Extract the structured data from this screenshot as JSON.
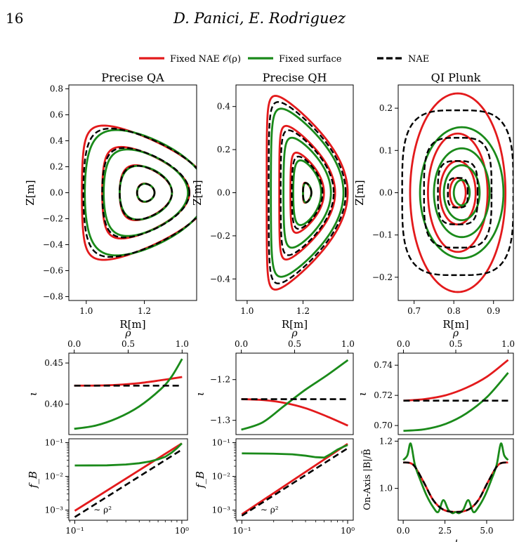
{
  "header": {
    "page_number": "16",
    "running_head": "D. Panici, E. Rodriguez"
  },
  "legend": {
    "items": [
      {
        "label": "Fixed NAE 𝒪(ρ)",
        "color": "#e31a1c",
        "dash": false
      },
      {
        "label": "Fixed surface",
        "color": "#1a8a1a",
        "dash": false
      },
      {
        "label": "NAE",
        "color": "#000000",
        "dash": true
      }
    ]
  },
  "colors": {
    "red": "#e31a1c",
    "green": "#1a8a1a",
    "black": "#000000"
  },
  "chart_data": [
    {
      "id": "qa-cross-section",
      "type": "line",
      "title": "Precise QA",
      "xlabel": "R[m]",
      "ylabel": "Z[m]",
      "xlim": [
        0.94,
        1.38
      ],
      "ylim": [
        -0.83,
        0.83
      ],
      "xticks": [
        1.0,
        1.2
      ],
      "xtick_labels": [
        "1.0",
        "1.2"
      ],
      "yticks": [
        -0.8,
        -0.6,
        -0.4,
        -0.2,
        0.0,
        0.2,
        0.4,
        0.6,
        0.8
      ],
      "ytick_labels": [
        "−0.8",
        "−0.6",
        "−0.4",
        "−0.2",
        "0.0",
        "0.2",
        "0.4",
        "0.6",
        "0.8"
      ],
      "surfaces": [
        {
          "series": "Fixed NAE 𝒪(ρ)",
          "r0": 1.205,
          "a": [
            0.03,
            0.09,
            0.15,
            0.22
          ],
          "k": 2.35,
          "d": [
            0.15,
            0.4,
            0.6,
            0.72
          ]
        },
        {
          "series": "Fixed surface",
          "r0": 1.205,
          "a": [
            0.03,
            0.09,
            0.145,
            0.21
          ],
          "k": 2.3,
          "d": [
            0.1,
            0.3,
            0.45,
            0.5
          ]
        },
        {
          "series": "NAE",
          "r0": 1.205,
          "a": [
            0.03,
            0.09,
            0.15,
            0.215
          ],
          "k": 2.3,
          "d": [
            0.12,
            0.35,
            0.52,
            0.6
          ]
        }
      ]
    },
    {
      "id": "qh-cross-section",
      "type": "line",
      "title": "Precise QH",
      "xlabel": "R[m]",
      "ylabel": "Z[m]",
      "xlim": [
        0.96,
        1.38
      ],
      "ylim": [
        -0.5,
        0.5
      ],
      "xticks": [
        1.0,
        1.2
      ],
      "xtick_labels": [
        "1.0",
        "1.2"
      ],
      "yticks": [
        -0.4,
        -0.2,
        0.0,
        0.2,
        0.4
      ],
      "ytick_labels": [
        "−0.4",
        "−0.2",
        "0.0",
        "0.2",
        "0.4"
      ],
      "surfaces": [
        {
          "series": "Fixed NAE 𝒪(ρ)",
          "r0": 1.215,
          "a": [
            0.015,
            0.06,
            0.1,
            0.145
          ],
          "k": 3.1,
          "d": [
            0.5,
            0.7,
            0.85,
            0.9
          ]
        },
        {
          "series": "Fixed surface",
          "r0": 1.215,
          "a": [
            0.015,
            0.05,
            0.085,
            0.13
          ],
          "k": 3.0,
          "d": [
            0.3,
            0.5,
            0.7,
            0.8
          ]
        },
        {
          "series": "NAE",
          "r0": 1.215,
          "a": [
            0.015,
            0.055,
            0.095,
            0.138
          ],
          "k": 3.05,
          "d": [
            0.4,
            0.6,
            0.78,
            0.85
          ]
        }
      ]
    },
    {
      "id": "qi-cross-section",
      "type": "line",
      "title": "QI Plunk",
      "xlabel": "R[m]",
      "ylabel": "Z[m]",
      "xlim": [
        0.66,
        0.95
      ],
      "ylim": [
        -0.255,
        0.255
      ],
      "xticks": [
        0.7,
        0.8,
        0.9
      ],
      "xtick_labels": [
        "0.7",
        "0.8",
        "0.9"
      ],
      "yticks": [
        -0.2,
        -0.1,
        0.0,
        0.1,
        0.2
      ],
      "ytick_labels": [
        "−0.2",
        "−0.1",
        "0.0",
        "0.1",
        "0.2"
      ],
      "surfaces": [
        {
          "series": "Fixed NAE 𝒪(ρ)",
          "shape": "ellipse",
          "r0": 0.81,
          "a": [
            0.02,
            0.045,
            0.075,
            0.12
          ],
          "b": [
            0.035,
            0.075,
            0.14,
            0.235
          ]
        },
        {
          "series": "Fixed surface",
          "shape": "ellipse",
          "r0": 0.82,
          "a": [
            0.02,
            0.045,
            0.07,
            0.105
          ],
          "b": [
            0.03,
            0.065,
            0.105,
            0.155
          ]
        },
        {
          "series": "NAE",
          "shape": "rounded-square",
          "r0": 0.81,
          "a": [
            0.025,
            0.05,
            0.085,
            0.14
          ],
          "b": [
            0.035,
            0.075,
            0.13,
            0.195
          ]
        }
      ]
    },
    {
      "id": "qa-iota",
      "type": "line",
      "xlabel": "ρ",
      "ylabel": "ι",
      "xlim": [
        -0.05,
        1.05
      ],
      "ylim": [
        0.363,
        0.462
      ],
      "xticks": [
        0.0,
        0.5,
        1.0
      ],
      "xtick_labels": [
        "0.0",
        "0.5",
        "1.0"
      ],
      "yticks": [
        0.4,
        0.45
      ],
      "ytick_labels": [
        "0.40",
        "0.45"
      ],
      "series": [
        {
          "name": "Fixed NAE 𝒪(ρ)",
          "x": [
            0,
            0.2,
            0.4,
            0.6,
            0.8,
            1.0
          ],
          "y": [
            0.4225,
            0.4226,
            0.4235,
            0.4255,
            0.429,
            0.433
          ]
        },
        {
          "name": "Fixed surface",
          "x": [
            0,
            0.2,
            0.4,
            0.6,
            0.8,
            0.9,
            1.0
          ],
          "y": [
            0.37,
            0.374,
            0.383,
            0.397,
            0.418,
            0.433,
            0.455
          ]
        },
        {
          "name": "NAE",
          "x": [
            0,
            1.0
          ],
          "y": [
            0.4225,
            0.4225
          ]
        }
      ]
    },
    {
      "id": "qh-iota",
      "type": "line",
      "xlabel": "ρ",
      "ylabel": "ι",
      "xlim": [
        -0.05,
        1.05
      ],
      "ylim": [
        -1.335,
        -1.135
      ],
      "xticks": [
        0.0,
        0.5,
        1.0
      ],
      "xtick_labels": [
        "0.0",
        "0.5",
        "1.0"
      ],
      "yticks": [
        -1.3,
        -1.2
      ],
      "ytick_labels": [
        "−1.3",
        "−1.2"
      ],
      "series": [
        {
          "name": "Fixed NAE 𝒪(ρ)",
          "x": [
            0,
            0.2,
            0.4,
            0.6,
            0.8,
            1.0
          ],
          "y": [
            -1.248,
            -1.25,
            -1.257,
            -1.27,
            -1.29,
            -1.313
          ]
        },
        {
          "name": "Fixed surface",
          "x": [
            0,
            0.2,
            0.4,
            0.6,
            0.8,
            1.0
          ],
          "y": [
            -1.323,
            -1.305,
            -1.265,
            -1.225,
            -1.19,
            -1.152
          ]
        },
        {
          "name": "NAE",
          "x": [
            0,
            1.0
          ],
          "y": [
            -1.248,
            -1.248
          ]
        }
      ]
    },
    {
      "id": "qi-iota",
      "type": "line",
      "xlabel": "ρ",
      "ylabel": "ι",
      "xlim": [
        -0.05,
        1.05
      ],
      "ylim": [
        0.694,
        0.748
      ],
      "xticks": [
        0.0,
        0.5,
        1.0
      ],
      "xtick_labels": [
        "0.0",
        "0.5",
        "1.0"
      ],
      "yticks": [
        0.7,
        0.72,
        0.74
      ],
      "ytick_labels": [
        "0.70",
        "0.72",
        "0.74"
      ],
      "series": [
        {
          "name": "Fixed NAE 𝒪(ρ)",
          "x": [
            0,
            0.2,
            0.4,
            0.6,
            0.8,
            1.0
          ],
          "y": [
            0.7165,
            0.7175,
            0.72,
            0.725,
            0.7325,
            0.7435
          ]
        },
        {
          "name": "Fixed surface",
          "x": [
            0,
            0.2,
            0.4,
            0.6,
            0.8,
            1.0
          ],
          "y": [
            0.6965,
            0.6975,
            0.701,
            0.708,
            0.719,
            0.735
          ]
        },
        {
          "name": "NAE",
          "x": [
            0,
            1.0
          ],
          "y": [
            0.7165,
            0.7165
          ]
        }
      ]
    },
    {
      "id": "qa-fb",
      "type": "line",
      "xscale": "log",
      "yscale": "log",
      "xlabel": "ρ",
      "ylabel": "f_B",
      "xlim": [
        0.088,
        1.13
      ],
      "ylim": [
        0.0005,
        0.13
      ],
      "xticks": [
        0.1,
        1.0
      ],
      "xtick_labels": [
        "10⁻¹",
        "10⁰"
      ],
      "yticks": [
        0.001,
        0.01,
        0.1
      ],
      "ytick_labels": [
        "10⁻³",
        "10⁻²",
        "10⁻¹"
      ],
      "annotations": [
        {
          "text": "∼ ρ²",
          "x": 0.15,
          "y": 0.00085
        }
      ],
      "series": [
        {
          "name": "Fixed NAE 𝒪(ρ)",
          "x": [
            0.1,
            1.0
          ],
          "y": [
            0.00095,
            0.095
          ]
        },
        {
          "name": "Fixed surface",
          "x": [
            0.1,
            0.2,
            0.3,
            0.4,
            0.5,
            0.6,
            0.7,
            0.8,
            0.9,
            1.0
          ],
          "y": [
            0.021,
            0.0212,
            0.0225,
            0.0245,
            0.0275,
            0.032,
            0.038,
            0.05,
            0.068,
            0.095
          ]
        },
        {
          "name": "NAE",
          "x": [
            0.1,
            1.0
          ],
          "y": [
            0.00062,
            0.062
          ]
        }
      ]
    },
    {
      "id": "qh-fb",
      "type": "line",
      "xscale": "log",
      "yscale": "log",
      "xlabel": "ρ",
      "ylabel": "f_B",
      "xlim": [
        0.088,
        1.13
      ],
      "ylim": [
        0.0005,
        0.13
      ],
      "xticks": [
        0.1,
        1.0
      ],
      "xtick_labels": [
        "10⁻¹",
        "10⁰"
      ],
      "yticks": [
        0.001,
        0.01,
        0.1
      ],
      "ytick_labels": [
        "10⁻³",
        "10⁻²",
        "10⁻¹"
      ],
      "annotations": [
        {
          "text": "∼ ρ²",
          "x": 0.15,
          "y": 0.00085
        }
      ],
      "series": [
        {
          "name": "Fixed NAE 𝒪(ρ)",
          "x": [
            0.1,
            1.0
          ],
          "y": [
            0.00075,
            0.092
          ]
        },
        {
          "name": "Fixed surface",
          "x": [
            0.1,
            0.2,
            0.3,
            0.4,
            0.5,
            0.6,
            0.7,
            0.8,
            0.9,
            1.0
          ],
          "y": [
            0.048,
            0.047,
            0.045,
            0.041,
            0.037,
            0.036,
            0.047,
            0.062,
            0.074,
            0.085
          ]
        },
        {
          "name": "NAE",
          "x": [
            0.1,
            1.0
          ],
          "y": [
            0.00068,
            0.068
          ]
        }
      ]
    },
    {
      "id": "qi-on-axis-b",
      "type": "line",
      "xlabel": "ϕ",
      "ylabel": "On-Axis |B|/B̄",
      "xlim": [
        -0.3,
        6.6
      ],
      "ylim": [
        0.865,
        1.21
      ],
      "xticks": [
        0.0,
        2.5,
        5.0
      ],
      "xtick_labels": [
        "0.0",
        "2.5",
        "5.0"
      ],
      "yticks": [
        1.0,
        1.2
      ],
      "ytick_labels": [
        "1.0",
        "1.2"
      ],
      "series": [
        {
          "name": "Fixed NAE 𝒪(ρ)",
          "x": [
            0.0,
            0.6,
            1.2,
            1.8,
            2.4,
            3.14,
            3.9,
            4.5,
            5.1,
            5.7,
            6.28
          ],
          "y": [
            1.11,
            1.1,
            1.03,
            0.95,
            0.91,
            0.9,
            0.91,
            0.95,
            1.03,
            1.1,
            1.11
          ]
        },
        {
          "name": "Fixed surface",
          "x": [
            0.0,
            0.25,
            0.45,
            0.7,
            1.0,
            1.4,
            1.8,
            2.1,
            2.4,
            2.7,
            2.95,
            3.14,
            3.35,
            3.6,
            3.9,
            4.2,
            4.5,
            4.9,
            5.3,
            5.6,
            5.85,
            6.05,
            6.28
          ],
          "y": [
            1.12,
            1.14,
            1.19,
            1.1,
            1.04,
            0.97,
            0.92,
            0.9,
            0.95,
            0.91,
            0.895,
            0.9,
            0.895,
            0.91,
            0.95,
            0.9,
            0.92,
            0.97,
            1.04,
            1.1,
            1.19,
            1.14,
            1.12
          ]
        },
        {
          "name": "NAE",
          "x": [
            0.0,
            0.6,
            1.2,
            1.8,
            2.4,
            3.14,
            3.9,
            4.5,
            5.1,
            5.7,
            6.28
          ],
          "y": [
            1.11,
            1.1,
            1.03,
            0.95,
            0.91,
            0.9,
            0.91,
            0.95,
            1.03,
            1.1,
            1.11
          ]
        }
      ]
    }
  ]
}
